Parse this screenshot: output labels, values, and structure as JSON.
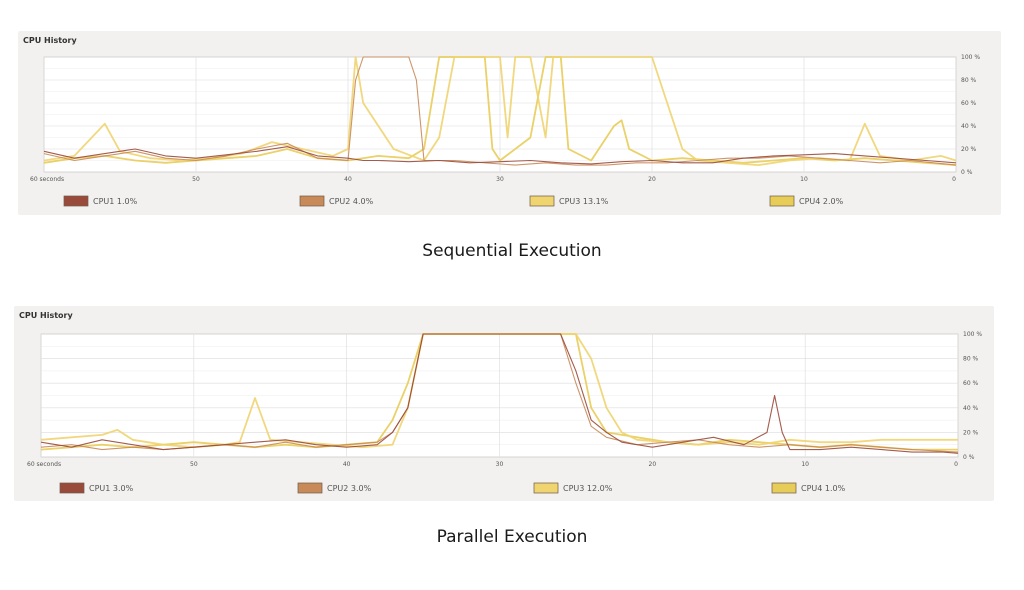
{
  "chart_data": [
    {
      "type": "line",
      "title": "CPU History",
      "caption": "Sequential Execution",
      "x_tick_labels": [
        "60 seconds",
        "50",
        "40",
        "30",
        "20",
        "10",
        "0"
      ],
      "y_tick_labels": [
        "100 %",
        "80 %",
        "60 %",
        "40 %",
        "20 %",
        "0 %"
      ],
      "xlim": [
        60,
        0
      ],
      "ylim": [
        0,
        100
      ],
      "grid": true,
      "legend_position": "bottom",
      "legend": [
        {
          "label": "CPU1",
          "value": "1.0%"
        },
        {
          "label": "CPU2",
          "value": "4.0%"
        },
        {
          "label": "CPU3",
          "value": "13.1%"
        },
        {
          "label": "CPU4",
          "value": "2.0%"
        }
      ],
      "series": [
        {
          "name": "CPU1",
          "color": "#9a4a3a",
          "points": [
            [
              60,
              18
            ],
            [
              58,
              12
            ],
            [
              56,
              16
            ],
            [
              54,
              20
            ],
            [
              52,
              14
            ],
            [
              50,
              12
            ],
            [
              48,
              15
            ],
            [
              46,
              18
            ],
            [
              44,
              22
            ],
            [
              42,
              14
            ],
            [
              40,
              12
            ],
            [
              39,
              10
            ],
            [
              38,
              10
            ],
            [
              36,
              9
            ],
            [
              34,
              10
            ],
            [
              32,
              8
            ],
            [
              30,
              9
            ],
            [
              28,
              10
            ],
            [
              26,
              8
            ],
            [
              24,
              7
            ],
            [
              22,
              9
            ],
            [
              20,
              10
            ],
            [
              18,
              8
            ],
            [
              16,
              8
            ],
            [
              14,
              12
            ],
            [
              12,
              14
            ],
            [
              10,
              15
            ],
            [
              8,
              16
            ],
            [
              6,
              14
            ],
            [
              4,
              12
            ],
            [
              2,
              10
            ],
            [
              0,
              8
            ]
          ]
        },
        {
          "name": "CPU2",
          "color": "#c88a58",
          "points": [
            [
              60,
              16
            ],
            [
              58,
              10
            ],
            [
              56,
              14
            ],
            [
              54,
              18
            ],
            [
              52,
              12
            ],
            [
              50,
              10
            ],
            [
              48,
              14
            ],
            [
              46,
              20
            ],
            [
              44,
              25
            ],
            [
              42,
              12
            ],
            [
              40,
              10
            ],
            [
              39.5,
              80
            ],
            [
              39,
              100
            ],
            [
              36,
              100
            ],
            [
              35.5,
              80
            ],
            [
              35,
              10
            ],
            [
              33,
              10
            ],
            [
              31,
              8
            ],
            [
              29,
              6
            ],
            [
              27,
              8
            ],
            [
              25,
              6
            ],
            [
              23,
              6
            ],
            [
              21,
              8
            ],
            [
              19,
              8
            ],
            [
              17,
              10
            ],
            [
              15,
              12
            ],
            [
              13,
              12
            ],
            [
              11,
              14
            ],
            [
              9,
              12
            ],
            [
              7,
              10
            ],
            [
              5,
              8
            ],
            [
              3,
              10
            ],
            [
              0,
              6
            ]
          ]
        },
        {
          "name": "CPU3",
          "color": "#f0d470",
          "points": [
            [
              60,
              10
            ],
            [
              58,
              14
            ],
            [
              56,
              42
            ],
            [
              55,
              18
            ],
            [
              53,
              12
            ],
            [
              51,
              10
            ],
            [
              49,
              12
            ],
            [
              47,
              16
            ],
            [
              45,
              26
            ],
            [
              43,
              20
            ],
            [
              41,
              14
            ],
            [
              40,
              20
            ],
            [
              39.5,
              100
            ],
            [
              39,
              60
            ],
            [
              38,
              40
            ],
            [
              37,
              20
            ],
            [
              36,
              15
            ],
            [
              35,
              10
            ],
            [
              34,
              30
            ],
            [
              33,
              100
            ],
            [
              31,
              100
            ],
            [
              30,
              100
            ],
            [
              29.5,
              30
            ],
            [
              29,
              100
            ],
            [
              28,
              100
            ],
            [
              27,
              30
            ],
            [
              26.5,
              100
            ],
            [
              25,
              100
            ],
            [
              21,
              100
            ],
            [
              20,
              100
            ],
            [
              19,
              60
            ],
            [
              18,
              20
            ],
            [
              17,
              10
            ],
            [
              15,
              8
            ],
            [
              13,
              6
            ],
            [
              11,
              10
            ],
            [
              9,
              12
            ],
            [
              7,
              10
            ],
            [
              6,
              42
            ],
            [
              5,
              14
            ],
            [
              3,
              10
            ],
            [
              1,
              14
            ],
            [
              0,
              10
            ]
          ]
        },
        {
          "name": "CPU4",
          "color": "#e8cc58",
          "points": [
            [
              60,
              8
            ],
            [
              58,
              12
            ],
            [
              56,
              14
            ],
            [
              54,
              10
            ],
            [
              52,
              8
            ],
            [
              50,
              10
            ],
            [
              48,
              12
            ],
            [
              46,
              14
            ],
            [
              44,
              20
            ],
            [
              42,
              12
            ],
            [
              40,
              10
            ],
            [
              38,
              14
            ],
            [
              36,
              12
            ],
            [
              35,
              20
            ],
            [
              34,
              100
            ],
            [
              31,
              100
            ],
            [
              30.5,
              20
            ],
            [
              30,
              10
            ],
            [
              28,
              30
            ],
            [
              27,
              100
            ],
            [
              26,
              100
            ],
            [
              25.5,
              20
            ],
            [
              24,
              10
            ],
            [
              22.5,
              40
            ],
            [
              22,
              45
            ],
            [
              21.5,
              20
            ],
            [
              20,
              10
            ],
            [
              18,
              12
            ],
            [
              16,
              10
            ],
            [
              14,
              8
            ],
            [
              12,
              10
            ],
            [
              10,
              12
            ],
            [
              8,
              10
            ],
            [
              6,
              12
            ],
            [
              4,
              10
            ],
            [
              2,
              8
            ],
            [
              0,
              6
            ]
          ]
        }
      ]
    },
    {
      "type": "line",
      "title": "CPU History",
      "caption": "Parallel Execution",
      "x_tick_labels": [
        "60 seconds",
        "50",
        "40",
        "30",
        "20",
        "10",
        "0"
      ],
      "y_tick_labels": [
        "100 %",
        "80 %",
        "60 %",
        "40 %",
        "20 %",
        "0 %"
      ],
      "xlim": [
        60,
        0
      ],
      "ylim": [
        0,
        100
      ],
      "grid": true,
      "legend_position": "bottom",
      "legend": [
        {
          "label": "CPU1",
          "value": "3.0%"
        },
        {
          "label": "CPU2",
          "value": "3.0%"
        },
        {
          "label": "CPU3",
          "value": "12.0%"
        },
        {
          "label": "CPU4",
          "value": "1.0%"
        }
      ],
      "series": [
        {
          "name": "CPU1",
          "color": "#9a4a3a",
          "points": [
            [
              60,
              12
            ],
            [
              58,
              8
            ],
            [
              56,
              14
            ],
            [
              54,
              10
            ],
            [
              52,
              6
            ],
            [
              50,
              8
            ],
            [
              48,
              10
            ],
            [
              46,
              12
            ],
            [
              44,
              14
            ],
            [
              42,
              10
            ],
            [
              40,
              8
            ],
            [
              38,
              10
            ],
            [
              37,
              20
            ],
            [
              36,
              40
            ],
            [
              35,
              100
            ],
            [
              26,
              100
            ],
            [
              25,
              70
            ],
            [
              24,
              30
            ],
            [
              23,
              20
            ],
            [
              22,
              12
            ],
            [
              20,
              8
            ],
            [
              18,
              12
            ],
            [
              16,
              16
            ],
            [
              14,
              10
            ],
            [
              12.5,
              20
            ],
            [
              12,
              50
            ],
            [
              11.5,
              20
            ],
            [
              11,
              6
            ],
            [
              9,
              6
            ],
            [
              7,
              8
            ],
            [
              5,
              6
            ],
            [
              3,
              4
            ],
            [
              1,
              4
            ],
            [
              0,
              3
            ]
          ]
        },
        {
          "name": "CPU2",
          "color": "#c88a58",
          "points": [
            [
              60,
              8
            ],
            [
              58,
              10
            ],
            [
              56,
              6
            ],
            [
              54,
              8
            ],
            [
              52,
              6
            ],
            [
              50,
              8
            ],
            [
              48,
              10
            ],
            [
              46,
              8
            ],
            [
              44,
              12
            ],
            [
              42,
              8
            ],
            [
              40,
              10
            ],
            [
              38,
              12
            ],
            [
              37,
              20
            ],
            [
              36,
              40
            ],
            [
              35,
              100
            ],
            [
              26,
              100
            ],
            [
              25,
              60
            ],
            [
              24,
              25
            ],
            [
              23,
              16
            ],
            [
              21,
              10
            ],
            [
              19,
              12
            ],
            [
              17,
              14
            ],
            [
              15,
              10
            ],
            [
              13,
              8
            ],
            [
              11,
              10
            ],
            [
              9,
              8
            ],
            [
              7,
              10
            ],
            [
              5,
              8
            ],
            [
              3,
              6
            ],
            [
              0,
              4
            ]
          ]
        },
        {
          "name": "CPU3",
          "color": "#f0d470",
          "points": [
            [
              60,
              14
            ],
            [
              58,
              16
            ],
            [
              56,
              18
            ],
            [
              55,
              22
            ],
            [
              54,
              14
            ],
            [
              52,
              10
            ],
            [
              50,
              8
            ],
            [
              48,
              10
            ],
            [
              47,
              12
            ],
            [
              46,
              48
            ],
            [
              45,
              14
            ],
            [
              43,
              12
            ],
            [
              41,
              10
            ],
            [
              39,
              8
            ],
            [
              37,
              10
            ],
            [
              36,
              40
            ],
            [
              35,
              100
            ],
            [
              25,
              100
            ],
            [
              24,
              80
            ],
            [
              23,
              40
            ],
            [
              22,
              20
            ],
            [
              21,
              14
            ],
            [
              19,
              12
            ],
            [
              17,
              10
            ],
            [
              15,
              12
            ],
            [
              13,
              10
            ],
            [
              11,
              14
            ],
            [
              9,
              12
            ],
            [
              7,
              12
            ],
            [
              5,
              14
            ],
            [
              3,
              14
            ],
            [
              0,
              14
            ]
          ]
        },
        {
          "name": "CPU4",
          "color": "#e8cc58",
          "points": [
            [
              60,
              6
            ],
            [
              58,
              8
            ],
            [
              56,
              10
            ],
            [
              54,
              8
            ],
            [
              52,
              10
            ],
            [
              50,
              12
            ],
            [
              48,
              10
            ],
            [
              46,
              8
            ],
            [
              44,
              10
            ],
            [
              42,
              8
            ],
            [
              40,
              10
            ],
            [
              38,
              12
            ],
            [
              37,
              30
            ],
            [
              36,
              60
            ],
            [
              35,
              100
            ],
            [
              25,
              100
            ],
            [
              24,
              40
            ],
            [
              23,
              20
            ],
            [
              21,
              16
            ],
            [
              19,
              12
            ],
            [
              17,
              10
            ],
            [
              15,
              14
            ],
            [
              13,
              12
            ],
            [
              11,
              10
            ],
            [
              9,
              8
            ],
            [
              7,
              10
            ],
            [
              5,
              8
            ],
            [
              3,
              6
            ],
            [
              0,
              6
            ]
          ]
        }
      ]
    }
  ]
}
